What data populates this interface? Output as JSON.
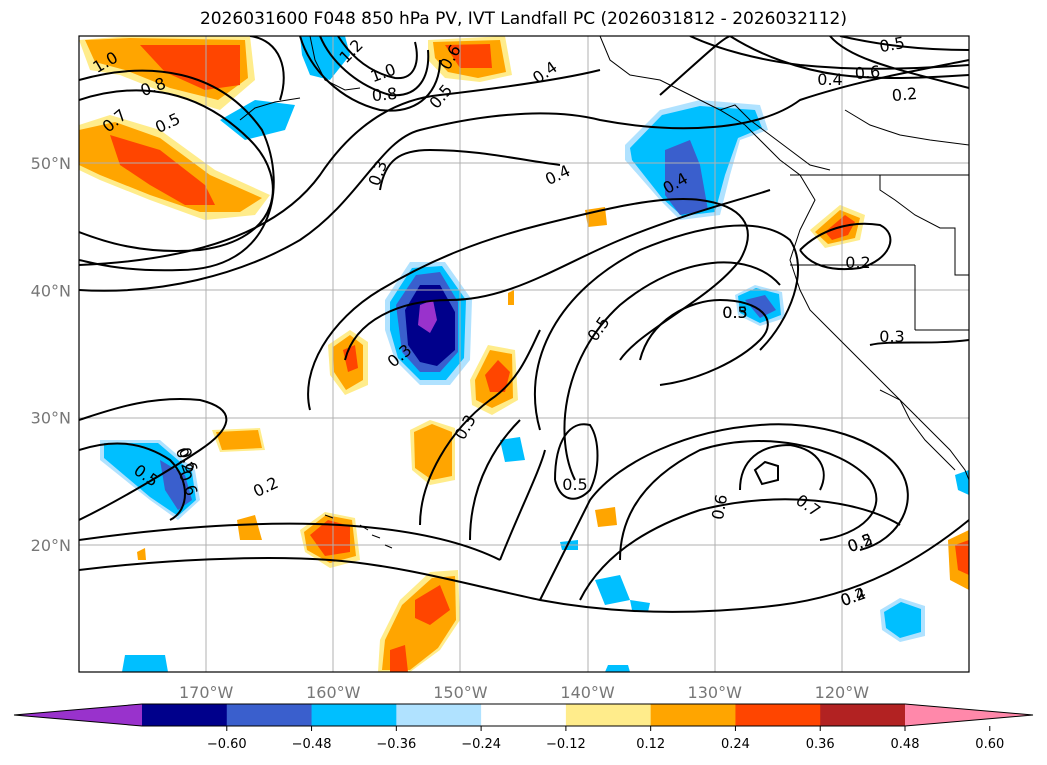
{
  "title": "2026031600 F048 850 hPa PV, IVT Landfall PC (2026031812 - 2026032112)",
  "map": {
    "lat_labels": [
      {
        "value": 50,
        "text": "50°N"
      },
      {
        "value": 40,
        "text": "40°N"
      },
      {
        "value": 30,
        "text": "30°N"
      },
      {
        "value": 20,
        "text": "20°N"
      }
    ],
    "lon_labels": [
      {
        "value": -170,
        "text": "170°W"
      },
      {
        "value": -160,
        "text": "160°W"
      },
      {
        "value": -150,
        "text": "150°W"
      },
      {
        "value": -140,
        "text": "140°W"
      },
      {
        "value": -130,
        "text": "130°W"
      },
      {
        "value": -120,
        "text": "120°W"
      }
    ],
    "grid": true,
    "contour_labels": [
      "1.0",
      "0.8",
      "0.7",
      "0.5",
      "1.2",
      "1.0",
      "0.8",
      "0.5",
      "0.6",
      "0.4",
      "0.4",
      "0.5",
      "0.6",
      "0.3",
      "0.4",
      "0.2",
      "0.3",
      "0.4",
      "0.5",
      "0.5",
      "0.3",
      "0.2",
      "0.2",
      "0.3",
      "0.5",
      "0.6",
      "0.6",
      "0.5",
      "0.6",
      "0.7",
      "0.2",
      "0.5",
      "0.4",
      "0.2",
      "0.2",
      "0.3"
    ]
  },
  "colorbar": {
    "ticks": [
      "−0.60",
      "−0.48",
      "−0.36",
      "−0.24",
      "−0.12",
      "0.12",
      "0.24",
      "0.36",
      "0.48",
      "0.60"
    ],
    "colors": [
      "#9932cc",
      "#00008b",
      "#3a5fcd",
      "#00bfff",
      "#b0e2ff",
      "#ffffff",
      "#ffec8b",
      "#ffa500",
      "#ff4500",
      "#b22222",
      "#ff88aa"
    ]
  }
}
